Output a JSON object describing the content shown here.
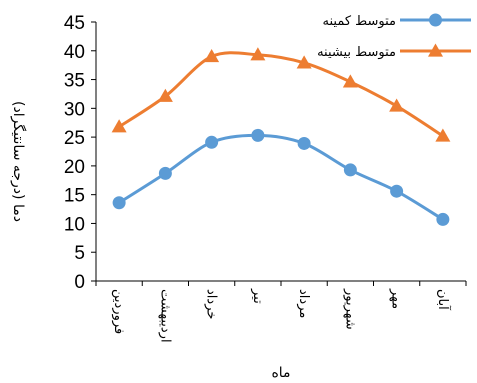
{
  "chart_data": {
    "type": "line",
    "categories": [
      "فروردین",
      "اردیبهشت",
      "خرداد",
      "تیر",
      "مرداد",
      "شهریور",
      "مهر",
      "آبان"
    ],
    "series": [
      {
        "name": "متوسط کمینه",
        "color": "#5b9bd5",
        "marker": "circle",
        "values": [
          13.6,
          18.7,
          24.1,
          25.3,
          23.9,
          19.3,
          15.6,
          10.7
        ]
      },
      {
        "name": "متوسط بیشینه",
        "color": "#ed7d31",
        "marker": "triangle",
        "values": [
          26.8,
          32.1,
          39.0,
          39.3,
          37.9,
          34.6,
          30.4,
          25.2
        ]
      }
    ],
    "ylim": [
      0,
      45
    ],
    "yticks": [
      0,
      5,
      10,
      15,
      20,
      25,
      30,
      35,
      40,
      45
    ],
    "xlabel": "ماه",
    "ylabel": "دما (درجه سانتیگراد)",
    "grid": false,
    "legend_position": "top-right"
  }
}
